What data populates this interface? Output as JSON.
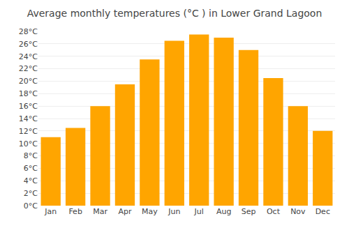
{
  "chart_data": {
    "type": "bar",
    "title": "Average monthly temperatures (°C ) in Lower Grand Lagoon",
    "categories": [
      "Jan",
      "Feb",
      "Mar",
      "Apr",
      "May",
      "Jun",
      "Jul",
      "Aug",
      "Sep",
      "Oct",
      "Nov",
      "Dec"
    ],
    "values": [
      11.0,
      12.5,
      16.0,
      19.5,
      23.5,
      26.5,
      27.5,
      27.0,
      25.0,
      20.5,
      16.0,
      12.0
    ],
    "color": "#FFA500",
    "ylim": [
      0,
      28
    ],
    "yticks": [
      {
        "value": 0,
        "label": "0°C"
      },
      {
        "value": 2,
        "label": "2°C"
      },
      {
        "value": 4,
        "label": "4°C"
      },
      {
        "value": 6,
        "label": "6°C"
      },
      {
        "value": 8,
        "label": "8°C"
      },
      {
        "value": 10,
        "label": "10°C"
      },
      {
        "value": 12,
        "label": "12°C"
      },
      {
        "value": 14,
        "label": "14°C"
      },
      {
        "value": 16,
        "label": "16°C"
      },
      {
        "value": 18,
        "label": "18°C"
      },
      {
        "value": 20,
        "label": "20°C"
      },
      {
        "value": 22,
        "label": "22°C"
      },
      {
        "value": 24,
        "label": "24°C"
      },
      {
        "value": 26,
        "label": "26°C"
      },
      {
        "value": 28,
        "label": "28°C"
      }
    ],
    "grid": true
  }
}
